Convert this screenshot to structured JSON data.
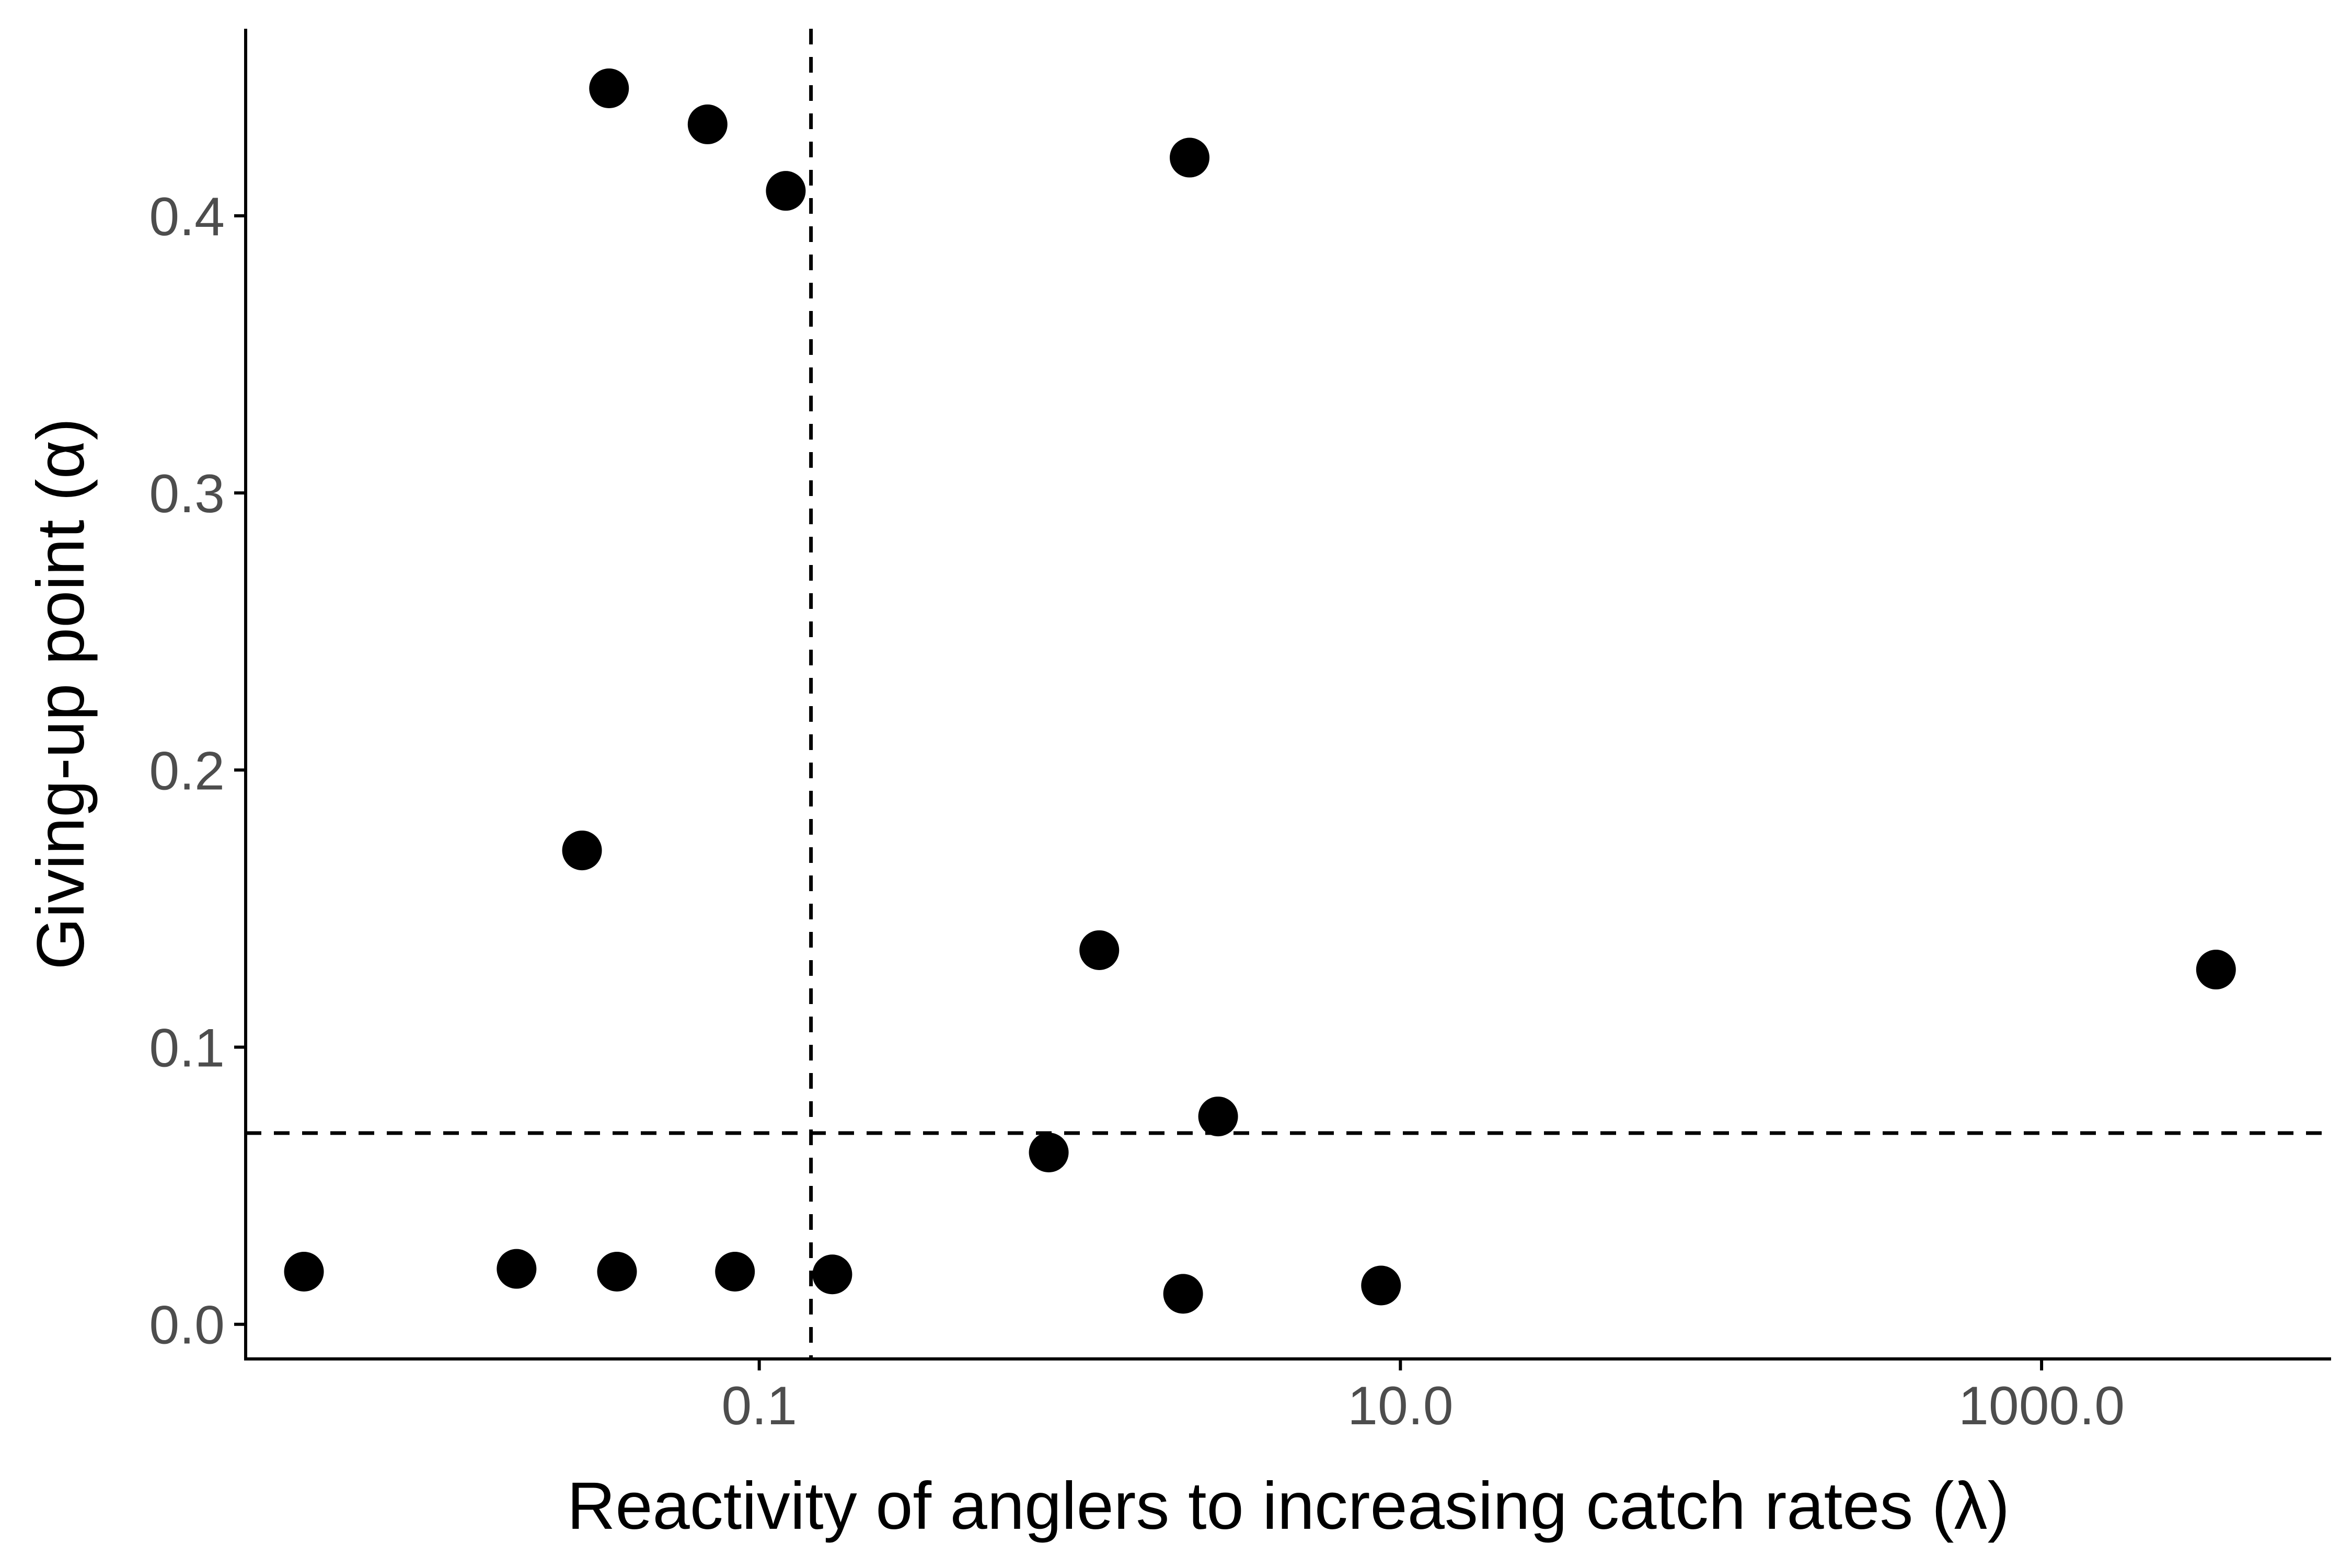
{
  "chart_data": {
    "type": "scatter",
    "title": "",
    "xlabel": "Reactivity of anglers to increasing catch rates (λ)",
    "ylabel": "Giving-up point (α)",
    "x_scale": "log10",
    "xlim": [
      0.0025,
      8000
    ],
    "ylim": [
      -0.0125,
      0.4675
    ],
    "x_ticks": [
      0.1,
      10,
      1000
    ],
    "x_tick_labels": [
      "0.1",
      "10.0",
      "1000.0"
    ],
    "y_ticks": [
      0.0,
      0.1,
      0.2,
      0.3,
      0.4
    ],
    "y_tick_labels": [
      "0.0",
      "0.1",
      "0.2",
      "0.3",
      "0.4"
    ],
    "grid": false,
    "legend": "none",
    "reference_lines": {
      "vline_x": 0.145,
      "hline_y": 0.069
    },
    "series": [
      {
        "points": [
          {
            "x": 0.0038,
            "y": 0.019
          },
          {
            "x": 0.028,
            "y": 0.171
          },
          {
            "x": 0.034,
            "y": 0.446
          },
          {
            "x": 0.0175,
            "y": 0.02
          },
          {
            "x": 0.036,
            "y": 0.019
          },
          {
            "x": 0.069,
            "y": 0.433
          },
          {
            "x": 0.084,
            "y": 0.019
          },
          {
            "x": 0.121,
            "y": 0.409
          },
          {
            "x": 0.169,
            "y": 0.018
          },
          {
            "x": 0.8,
            "y": 0.062
          },
          {
            "x": 1.15,
            "y": 0.135
          },
          {
            "x": 2.1,
            "y": 0.011
          },
          {
            "x": 2.2,
            "y": 0.421
          },
          {
            "x": 2.7,
            "y": 0.075
          },
          {
            "x": 8.7,
            "y": 0.014
          },
          {
            "x": 3500,
            "y": 0.128
          }
        ]
      }
    ]
  }
}
